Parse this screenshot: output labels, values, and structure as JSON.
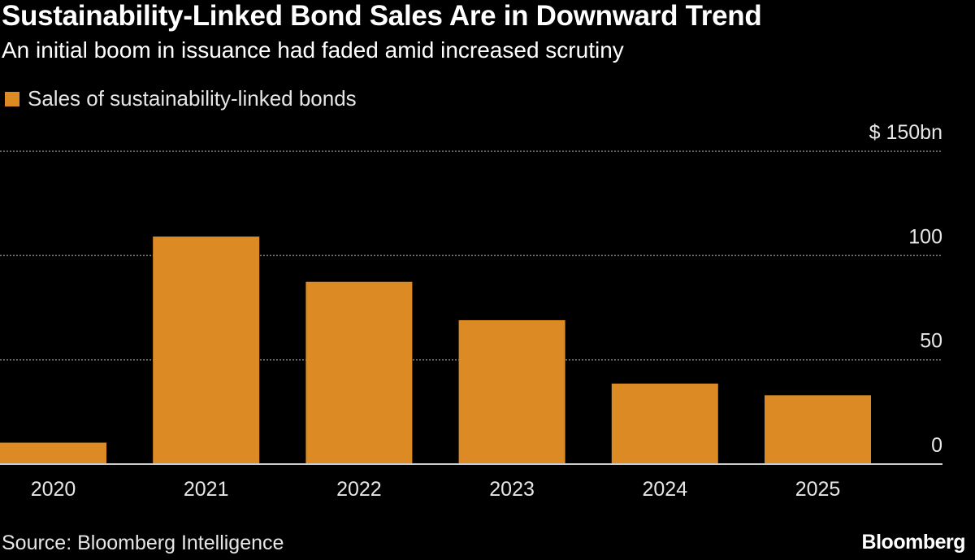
{
  "title": "Sustainability-Linked Bond Sales Are in Downward Trend",
  "subtitle": "An initial boom in issuance had faded amid increased scrutiny",
  "source": "Source: Bloomberg Intelligence",
  "logo": "Bloomberg",
  "colors": {
    "bar": "#dc8a24",
    "background": "#000000",
    "grid": "#7a7a7a",
    "axis": "#cccccc"
  },
  "chart_data": {
    "type": "bar",
    "title": "Sustainability-Linked Bond Sales Are in Downward Trend",
    "legend": {
      "entries": [
        "Sales of sustainability-linked bonds"
      ],
      "placement": "top-left"
    },
    "categories": [
      "2020",
      "2021",
      "2022",
      "2023",
      "2024",
      "2025"
    ],
    "series": [
      {
        "name": "Sales of sustainability-linked bonds",
        "values": [
          10.3,
          109.1,
          87.4,
          69.0,
          38.6,
          33.0
        ]
      }
    ],
    "ylim": [
      0,
      150
    ],
    "yticks": [
      0,
      50,
      100,
      150
    ],
    "ytick_labels": [
      "0",
      "50",
      "100",
      "$ 150bn"
    ],
    "yaxis_position": "right",
    "grid": "horizontal dotted"
  }
}
